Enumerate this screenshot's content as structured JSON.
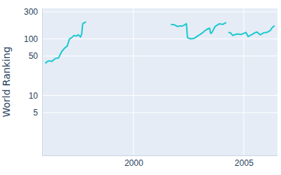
{
  "chart_data": {
    "type": "line",
    "y_label": "World Ranking",
    "x": [
      1996.0,
      1996.1,
      1996.2,
      1996.3,
      1996.45,
      1996.6,
      1996.75,
      1996.9,
      1997.0,
      1997.1,
      1997.2,
      1997.3,
      1997.4,
      1997.5,
      1997.6,
      1997.65,
      1997.7,
      1997.85,
      1999.8,
      2001.7,
      2001.85,
      2002.0,
      2002.1,
      2002.2,
      2002.3,
      2002.4,
      2002.45,
      2002.6,
      2002.75,
      2002.9,
      2003.0,
      2003.15,
      2003.3,
      2003.45,
      2003.5,
      2003.55,
      2003.7,
      2003.9,
      2004.05,
      2004.2,
      2004.25,
      2004.3,
      2004.4,
      2004.5,
      2004.7,
      2004.9,
      2005.0,
      2005.1,
      2005.2,
      2005.35,
      2005.5,
      2005.6,
      2005.75,
      2005.9,
      2006.05,
      2006.2,
      2006.3,
      2006.4
    ],
    "values": [
      37,
      40,
      41,
      40,
      45,
      46,
      60,
      70,
      75,
      100,
      105,
      115,
      112,
      118,
      108,
      120,
      185,
      200,
      null,
      180,
      178,
      165,
      170,
      168,
      175,
      185,
      105,
      100,
      102,
      112,
      118,
      130,
      145,
      155,
      125,
      128,
      165,
      185,
      180,
      195,
      null,
      130,
      128,
      115,
      122,
      120,
      125,
      130,
      110,
      118,
      128,
      132,
      118,
      128,
      130,
      140,
      160,
      170
    ],
    "color": "#1ac8cf",
    "log": "y",
    "xlim": [
      1995.86,
      2006.53
    ],
    "xticks": [
      2000,
      2005
    ],
    "ylim": [
      0.88,
      345
    ],
    "yticks": [
      5,
      10,
      50,
      100,
      300
    ],
    "grid": true
  }
}
